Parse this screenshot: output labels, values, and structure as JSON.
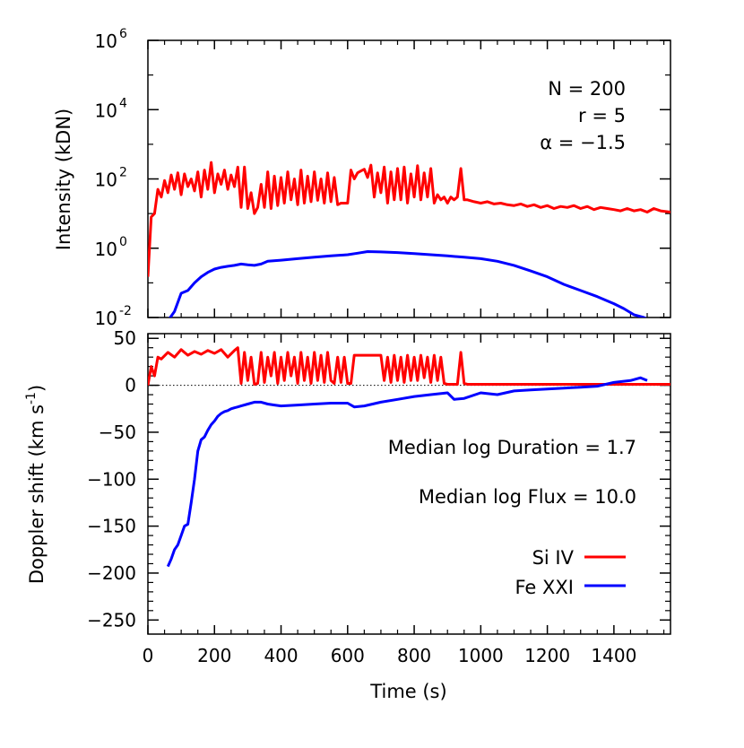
{
  "chart_data": [
    {
      "type": "line",
      "ylabel": "Intensity (kDN)",
      "xlabel": "",
      "yscale": "log",
      "xlim": [
        0,
        1570
      ],
      "ylim": [
        0.01,
        1000000
      ],
      "xticks": [
        "0",
        "200",
        "400",
        "600",
        "800",
        "1000",
        "1200",
        "1400"
      ],
      "yticks": [
        {
          "base": "10",
          "exp": "-2",
          "value": 0.01
        },
        {
          "base": "10",
          "exp": "0",
          "value": 1
        },
        {
          "base": "10",
          "exp": "2",
          "value": 100
        },
        {
          "base": "10",
          "exp": "4",
          "value": 10000
        },
        {
          "base": "10",
          "exp": "6",
          "value": 1000000
        }
      ],
      "annotations": [
        "N = 200",
        "r = 5",
        "α = −1.5"
      ],
      "series": [
        {
          "name": "Si IV",
          "color": "#ff0000",
          "x": [
            0,
            10,
            20,
            30,
            40,
            50,
            60,
            70,
            80,
            90,
            100,
            110,
            120,
            130,
            140,
            150,
            160,
            170,
            180,
            190,
            200,
            210,
            220,
            230,
            240,
            250,
            260,
            270,
            280,
            290,
            300,
            310,
            320,
            330,
            340,
            350,
            360,
            370,
            380,
            390,
            400,
            410,
            420,
            430,
            440,
            450,
            460,
            470,
            480,
            490,
            500,
            510,
            520,
            530,
            540,
            550,
            560,
            570,
            580,
            590,
            600,
            610,
            620,
            630,
            640,
            650,
            660,
            670,
            680,
            690,
            700,
            710,
            720,
            730,
            740,
            750,
            760,
            770,
            780,
            790,
            800,
            810,
            820,
            830,
            840,
            850,
            860,
            870,
            880,
            890,
            900,
            910,
            920,
            930,
            940,
            950,
            960,
            980,
            1000,
            1020,
            1040,
            1060,
            1080,
            1100,
            1120,
            1140,
            1160,
            1180,
            1200,
            1220,
            1240,
            1260,
            1280,
            1300,
            1320,
            1340,
            1360,
            1380,
            1400,
            1420,
            1440,
            1460,
            1480,
            1500,
            1520,
            1540,
            1570
          ],
          "y": [
            0.15,
            8,
            10,
            50,
            30,
            90,
            40,
            130,
            50,
            150,
            35,
            140,
            60,
            100,
            45,
            160,
            30,
            180,
            50,
            300,
            40,
            140,
            70,
            180,
            50,
            130,
            60,
            220,
            15,
            220,
            14,
            40,
            10,
            15,
            70,
            15,
            160,
            14,
            120,
            17,
            110,
            20,
            160,
            25,
            100,
            18,
            180,
            20,
            120,
            22,
            160,
            24,
            100,
            20,
            150,
            22,
            110,
            18,
            20,
            20,
            20,
            180,
            100,
            150,
            170,
            190,
            110,
            250,
            30,
            150,
            40,
            220,
            20,
            160,
            25,
            200,
            25,
            220,
            20,
            140,
            30,
            240,
            25,
            150,
            30,
            200,
            20,
            35,
            25,
            30,
            20,
            30,
            25,
            30,
            200,
            25,
            25,
            22,
            20,
            22,
            19,
            20,
            18,
            17,
            19,
            16,
            18,
            15,
            17,
            14,
            16,
            15,
            17,
            14,
            16,
            13,
            15,
            14,
            13,
            12,
            14,
            12,
            13,
            11,
            14,
            12,
            11
          ]
        },
        {
          "name": "Fe XXI",
          "color": "#0000ff",
          "x": [
            60,
            80,
            100,
            120,
            140,
            160,
            180,
            200,
            220,
            240,
            260,
            280,
            300,
            320,
            340,
            360,
            400,
            450,
            500,
            550,
            600,
            630,
            660,
            700,
            750,
            800,
            850,
            900,
            950,
            1000,
            1050,
            1100,
            1150,
            1200,
            1250,
            1300,
            1350,
            1400,
            1430,
            1460,
            1490,
            1510
          ],
          "y": [
            0.008,
            0.015,
            0.05,
            0.06,
            0.1,
            0.15,
            0.2,
            0.25,
            0.28,
            0.3,
            0.32,
            0.35,
            0.33,
            0.32,
            0.35,
            0.42,
            0.45,
            0.5,
            0.55,
            0.6,
            0.65,
            0.72,
            0.8,
            0.78,
            0.75,
            0.7,
            0.65,
            0.6,
            0.55,
            0.5,
            0.42,
            0.32,
            0.22,
            0.15,
            0.09,
            0.06,
            0.04,
            0.025,
            0.018,
            0.012,
            0.01,
            0.008
          ]
        }
      ]
    },
    {
      "type": "line",
      "ylabel": "Doppler shift (km s",
      "ylabel_sup": "-1",
      "ylabel_end": ")",
      "xlabel": "Time (s)",
      "xlim": [
        0,
        1570
      ],
      "ylim": [
        -265,
        55
      ],
      "xticks": [
        "0",
        "200",
        "400",
        "600",
        "800",
        "1000",
        "1200",
        "1400"
      ],
      "yticks": [
        "50",
        "0",
        "−50",
        "−100",
        "−150",
        "−200",
        "−250"
      ],
      "zero_line": true,
      "annotations": [
        "Median log Duration = 1.7",
        "Median log Flux = 10.0"
      ],
      "legend": [
        {
          "label": "Si IV",
          "color": "#ff0000"
        },
        {
          "label": "Fe XXI",
          "color": "#0000ff"
        }
      ],
      "series": [
        {
          "name": "Si IV",
          "color": "#ff0000",
          "x": [
            0,
            10,
            20,
            30,
            40,
            60,
            80,
            100,
            120,
            140,
            160,
            180,
            200,
            220,
            240,
            260,
            270,
            280,
            290,
            300,
            310,
            320,
            330,
            340,
            350,
            360,
            370,
            380,
            390,
            400,
            410,
            420,
            430,
            440,
            450,
            460,
            470,
            480,
            490,
            500,
            510,
            520,
            530,
            540,
            550,
            560,
            570,
            580,
            590,
            600,
            610,
            620,
            640,
            660,
            680,
            700,
            710,
            720,
            730,
            740,
            750,
            760,
            770,
            780,
            790,
            800,
            810,
            820,
            830,
            840,
            850,
            860,
            870,
            880,
            890,
            900,
            910,
            920,
            930,
            940,
            950,
            960,
            1000,
            1100,
            1200,
            1300,
            1400,
            1570
          ],
          "y": [
            0,
            20,
            10,
            30,
            28,
            35,
            30,
            38,
            32,
            36,
            33,
            37,
            34,
            38,
            30,
            37,
            40,
            2,
            35,
            5,
            30,
            1,
            2,
            35,
            3,
            30,
            10,
            35,
            2,
            30,
            5,
            35,
            10,
            30,
            2,
            35,
            5,
            30,
            2,
            35,
            5,
            32,
            3,
            35,
            5,
            2,
            30,
            3,
            30,
            2,
            2,
            32,
            32,
            32,
            32,
            32,
            5,
            30,
            3,
            32,
            5,
            30,
            3,
            32,
            5,
            30,
            5,
            32,
            8,
            30,
            3,
            32,
            5,
            30,
            2,
            1,
            1,
            1,
            1,
            35,
            2,
            1,
            1,
            1,
            1,
            1,
            1,
            1
          ]
        },
        {
          "name": "Fe XXI",
          "color": "#0000ff",
          "x": [
            60,
            70,
            80,
            90,
            100,
            110,
            120,
            130,
            140,
            150,
            160,
            170,
            180,
            190,
            200,
            210,
            220,
            230,
            240,
            250,
            260,
            270,
            280,
            300,
            320,
            340,
            360,
            380,
            400,
            450,
            500,
            550,
            600,
            620,
            650,
            700,
            750,
            800,
            850,
            900,
            920,
            950,
            1000,
            1050,
            1100,
            1150,
            1200,
            1250,
            1300,
            1350,
            1400,
            1450,
            1480,
            1500
          ],
          "y": [
            -193,
            -185,
            -175,
            -170,
            -160,
            -150,
            -148,
            -125,
            -100,
            -70,
            -58,
            -55,
            -48,
            -42,
            -38,
            -33,
            -30,
            -28,
            -27,
            -25,
            -24,
            -23,
            -22,
            -20,
            -18,
            -18,
            -20,
            -21,
            -22,
            -21,
            -20,
            -19,
            -19,
            -23,
            -22,
            -18,
            -15,
            -12,
            -10,
            -8,
            -15,
            -14,
            -8,
            -10,
            -6,
            -5,
            -4,
            -3,
            -2,
            -1,
            3,
            5,
            8,
            5
          ]
        }
      ]
    }
  ]
}
